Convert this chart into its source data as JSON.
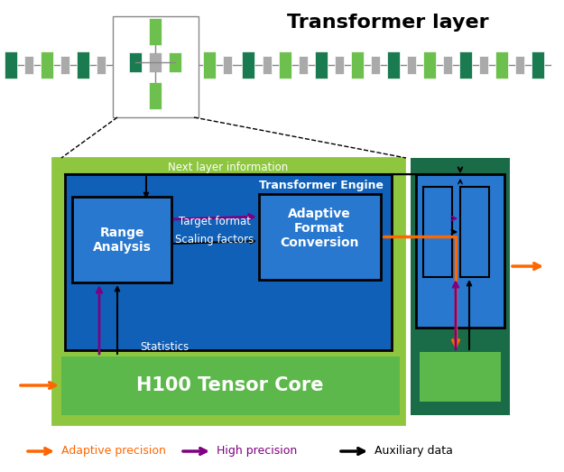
{
  "title": "Transformer layer",
  "bg_color": "#ffffff",
  "light_green": "#6ec04e",
  "dark_green": "#1a7a50",
  "mid_green": "#5cb84a",
  "blue_dark": "#1060b8",
  "light_blue": "#2878d0",
  "orange": "#ff6600",
  "purple": "#800080",
  "black": "#000000",
  "gray": "#aaaaaa",
  "light_green_bg": "#8ec640",
  "teal_green": "#1a6b48",
  "legend": [
    {
      "color": "#ff6600",
      "label": "Adaptive precision"
    },
    {
      "color": "#800080",
      "label": "High precision"
    },
    {
      "color": "#000000",
      "label": "Auxiliary data"
    }
  ]
}
